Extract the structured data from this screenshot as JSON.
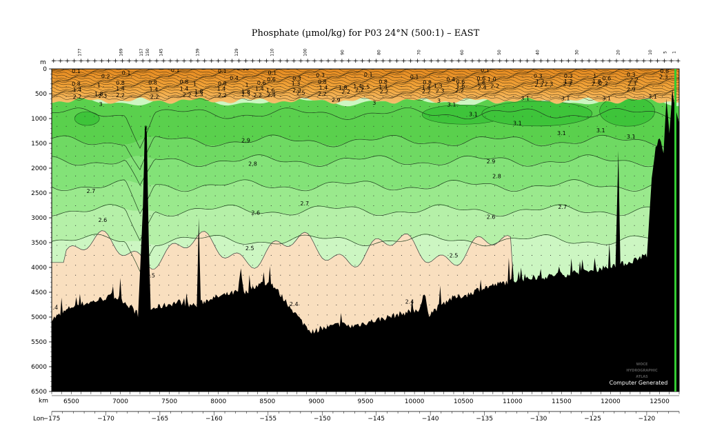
{
  "chart_data": {
    "type": "heatmap",
    "title": "Phosphate (µmol/kg) for P03 24°N (500:1) – EAST",
    "x_unit": "km",
    "y_unit": "m",
    "lon_label": "Lon",
    "xlim": [
      6300,
      12700
    ],
    "ylim": [
      6500,
      0
    ],
    "lon_range": [
      -175,
      -117
    ],
    "x_ticks": [
      6500,
      7000,
      7500,
      8000,
      8500,
      9000,
      9500,
      10000,
      10500,
      11000,
      11500,
      12000,
      12500
    ],
    "y_ticks": [
      0,
      500,
      1000,
      1500,
      2000,
      2500,
      3000,
      3500,
      4000,
      4500,
      5000,
      5500,
      6000,
      6500
    ],
    "lon_ticks": [
      -175,
      -170,
      -165,
      -160,
      -155,
      -150,
      -145,
      -140,
      -135,
      -130,
      -125,
      -120
    ],
    "station_numbers": [
      {
        "km": 6600,
        "label": "177"
      },
      {
        "km": 7020,
        "label": "169"
      },
      {
        "km": 7230,
        "label": "157"
      },
      {
        "km": 7290,
        "label": "150"
      },
      {
        "km": 7430,
        "label": "145"
      },
      {
        "km": 7800,
        "label": "139"
      },
      {
        "km": 8200,
        "label": "129"
      },
      {
        "km": 8560,
        "label": "110"
      },
      {
        "km": 8900,
        "label": "100"
      },
      {
        "km": 9280,
        "label": "90"
      },
      {
        "km": 9650,
        "label": "80"
      },
      {
        "km": 10060,
        "label": "70"
      },
      {
        "km": 10500,
        "label": "60"
      },
      {
        "km": 10880,
        "label": "50"
      },
      {
        "km": 11270,
        "label": "40"
      },
      {
        "km": 11670,
        "label": "30"
      },
      {
        "km": 12090,
        "label": "20"
      },
      {
        "km": 12420,
        "label": "10"
      },
      {
        "km": 12570,
        "label": "5"
      },
      {
        "km": 12660,
        "label": "1"
      }
    ],
    "color_bands": [
      {
        "range": "< 2.5",
        "color": "#f9dfbf"
      },
      {
        "range": "2.5 – 2.6",
        "color": "#ccf6c2"
      },
      {
        "range": "2.6 – 2.7",
        "color": "#b5f0a8"
      },
      {
        "range": "2.7 – 2.8",
        "color": "#9ae98d"
      },
      {
        "range": "2.8 – 2.9",
        "color": "#83e278"
      },
      {
        "range": "2.9 – 3.0",
        "color": "#6fd963"
      },
      {
        "range": "3.0 – 3.1",
        "color": "#5ad04d"
      },
      {
        "range": "> 3.1",
        "color": "#3ec43a"
      },
      {
        "range": "near surface",
        "color": "#f2a53b"
      }
    ],
    "contour_labels": [
      {
        "km": 6550,
        "depth": 80,
        "text": "0.1"
      },
      {
        "km": 6850,
        "depth": 190,
        "text": "0.2"
      },
      {
        "km": 7060,
        "depth": 120,
        "text": "0.1"
      },
      {
        "km": 6550,
        "depth": 340,
        "text": "0.8"
      },
      {
        "km": 6780,
        "depth": 370,
        "text": "1"
      },
      {
        "km": 7000,
        "depth": 320,
        "text": "0.8"
      },
      {
        "km": 6560,
        "depth": 460,
        "text": "1.4"
      },
      {
        "km": 7000,
        "depth": 440,
        "text": "1.4"
      },
      {
        "km": 6780,
        "depth": 540,
        "text": "1.8"
      },
      {
        "km": 6560,
        "depth": 600,
        "text": "2.2"
      },
      {
        "km": 6820,
        "depth": 580,
        "text": "2.3"
      },
      {
        "km": 7000,
        "depth": 570,
        "text": "2.2"
      },
      {
        "km": 7330,
        "depth": 310,
        "text": "0.8"
      },
      {
        "km": 7340,
        "depth": 450,
        "text": "1.4"
      },
      {
        "km": 7350,
        "depth": 600,
        "text": "2.2"
      },
      {
        "km": 7560,
        "depth": 60,
        "text": "0.1"
      },
      {
        "km": 7650,
        "depth": 300,
        "text": "0.8"
      },
      {
        "km": 7760,
        "depth": 340,
        "text": "1"
      },
      {
        "km": 7650,
        "depth": 440,
        "text": "1.4"
      },
      {
        "km": 7800,
        "depth": 490,
        "text": "1.8"
      },
      {
        "km": 7680,
        "depth": 560,
        "text": "2.2"
      },
      {
        "km": 7800,
        "depth": 550,
        "text": "2.3"
      },
      {
        "km": 8040,
        "depth": 80,
        "text": "0.1"
      },
      {
        "km": 8250,
        "depth": 30,
        "text": "0.06"
      },
      {
        "km": 8160,
        "depth": 220,
        "text": "0.4"
      },
      {
        "km": 8040,
        "depth": 330,
        "text": "0.8"
      },
      {
        "km": 8030,
        "depth": 440,
        "text": "1.4"
      },
      {
        "km": 8040,
        "depth": 570,
        "text": "2.2"
      },
      {
        "km": 8290,
        "depth": 360,
        "text": "1"
      },
      {
        "km": 8280,
        "depth": 500,
        "text": "1.8"
      },
      {
        "km": 8280,
        "depth": 550,
        "text": "2.3"
      },
      {
        "km": 8440,
        "depth": 320,
        "text": "0.6"
      },
      {
        "km": 8420,
        "depth": 440,
        "text": "1.4"
      },
      {
        "km": 8400,
        "depth": 570,
        "text": "2.2"
      },
      {
        "km": 8540,
        "depth": 250,
        "text": "0.6"
      },
      {
        "km": 8530,
        "depth": 470,
        "text": "1.6"
      },
      {
        "km": 8540,
        "depth": 560,
        "text": "2.4"
      },
      {
        "km": 8550,
        "depth": 120,
        "text": "0.1"
      },
      {
        "km": 8800,
        "depth": 230,
        "text": "0.3"
      },
      {
        "km": 8790,
        "depth": 330,
        "text": "1.3"
      },
      {
        "km": 8800,
        "depth": 470,
        "text": "2.3"
      },
      {
        "km": 8840,
        "depth": 520,
        "text": "2.5"
      },
      {
        "km": 9040,
        "depth": 170,
        "text": "0.3"
      },
      {
        "km": 9060,
        "depth": 300,
        "text": "0.8"
      },
      {
        "km": 9070,
        "depth": 420,
        "text": "1.4"
      },
      {
        "km": 9060,
        "depth": 540,
        "text": "2.2"
      },
      {
        "km": 9270,
        "depth": 420,
        "text": "1.8"
      },
      {
        "km": 9300,
        "depth": 500,
        "text": "2.2"
      },
      {
        "km": 9420,
        "depth": 390,
        "text": "1.4"
      },
      {
        "km": 9440,
        "depth": 460,
        "text": "2.2"
      },
      {
        "km": 9530,
        "depth": 150,
        "text": "0.1"
      },
      {
        "km": 9500,
        "depth": 400,
        "text": "1.5"
      },
      {
        "km": 9680,
        "depth": 300,
        "text": "0.8"
      },
      {
        "km": 9680,
        "depth": 400,
        "text": "1.4"
      },
      {
        "km": 9690,
        "depth": 490,
        "text": "2.2"
      },
      {
        "km": 9200,
        "depth": 670,
        "text": "2.9"
      },
      {
        "km": 9590,
        "depth": 720,
        "text": "3"
      },
      {
        "km": 10000,
        "depth": 200,
        "text": "0.1"
      },
      {
        "km": 10130,
        "depth": 310,
        "text": "0.8"
      },
      {
        "km": 10120,
        "depth": 410,
        "text": "1.4"
      },
      {
        "km": 10120,
        "depth": 490,
        "text": "2.2"
      },
      {
        "km": 10240,
        "depth": 380,
        "text": "1.3"
      },
      {
        "km": 10260,
        "depth": 480,
        "text": "2.3"
      },
      {
        "km": 10370,
        "depth": 250,
        "text": "0.4"
      },
      {
        "km": 10470,
        "depth": 300,
        "text": "0.6"
      },
      {
        "km": 10470,
        "depth": 380,
        "text": "1.6"
      },
      {
        "km": 10460,
        "depth": 470,
        "text": "2.2"
      },
      {
        "km": 10250,
        "depth": 680,
        "text": "3"
      },
      {
        "km": 10380,
        "depth": 760,
        "text": "3.1"
      },
      {
        "km": 10720,
        "depth": 60,
        "text": "0.1"
      },
      {
        "km": 10680,
        "depth": 230,
        "text": "0.6"
      },
      {
        "km": 10680,
        "depth": 320,
        "text": "1.6"
      },
      {
        "km": 10690,
        "depth": 410,
        "text": "2.4"
      },
      {
        "km": 10790,
        "depth": 250,
        "text": "1.0"
      },
      {
        "km": 10820,
        "depth": 380,
        "text": "2.2"
      },
      {
        "km": 10600,
        "depth": 950,
        "text": "3.1"
      },
      {
        "km": 11130,
        "depth": 630,
        "text": "3.1"
      },
      {
        "km": 11050,
        "depth": 1130,
        "text": "3.1"
      },
      {
        "km": 11260,
        "depth": 180,
        "text": "0.3"
      },
      {
        "km": 11280,
        "depth": 290,
        "text": "1.3"
      },
      {
        "km": 11270,
        "depth": 360,
        "text": "2.2"
      },
      {
        "km": 11370,
        "depth": 340,
        "text": "2.3"
      },
      {
        "km": 11540,
        "depth": 630,
        "text": "3.1"
      },
      {
        "km": 11570,
        "depth": 180,
        "text": "0.3"
      },
      {
        "km": 11570,
        "depth": 290,
        "text": "1.3"
      },
      {
        "km": 11560,
        "depth": 340,
        "text": "2.3"
      },
      {
        "km": 11840,
        "depth": 180,
        "text": "1"
      },
      {
        "km": 11860,
        "depth": 290,
        "text": "1.8"
      },
      {
        "km": 11850,
        "depth": 340,
        "text": "2.3"
      },
      {
        "km": 11960,
        "depth": 230,
        "text": "0.6"
      },
      {
        "km": 11930,
        "depth": 330,
        "text": "2.2"
      },
      {
        "km": 11960,
        "depth": 630,
        "text": "3.1"
      },
      {
        "km": 12210,
        "depth": 150,
        "text": "0.3"
      },
      {
        "km": 12240,
        "depth": 260,
        "text": "2.2"
      },
      {
        "km": 12220,
        "depth": 330,
        "text": "2.3"
      },
      {
        "km": 12210,
        "depth": 450,
        "text": "2.9"
      },
      {
        "km": 12430,
        "depth": 600,
        "text": "3.1"
      },
      {
        "km": 12550,
        "depth": 80,
        "text": "0.8"
      },
      {
        "km": 12540,
        "depth": 200,
        "text": "2.3"
      },
      {
        "km": 11500,
        "depth": 1330,
        "text": "3.1"
      },
      {
        "km": 11900,
        "depth": 1280,
        "text": "3.1"
      },
      {
        "km": 12210,
        "depth": 1400,
        "text": "3.1"
      },
      {
        "km": 6800,
        "depth": 750,
        "text": "3"
      },
      {
        "km": 7260,
        "depth": 1230,
        "text": "3"
      },
      {
        "km": 8280,
        "depth": 1480,
        "text": "2.9"
      },
      {
        "km": 10780,
        "depth": 1900,
        "text": "2.9"
      },
      {
        "km": 8350,
        "depth": 1950,
        "text": "2.8"
      },
      {
        "km": 10840,
        "depth": 2200,
        "text": "2.8"
      },
      {
        "km": 6700,
        "depth": 2500,
        "text": "2.7"
      },
      {
        "km": 8880,
        "depth": 2750,
        "text": "2.7"
      },
      {
        "km": 11510,
        "depth": 2820,
        "text": "2.7"
      },
      {
        "km": 6820,
        "depth": 3080,
        "text": "2.6"
      },
      {
        "km": 8380,
        "depth": 2940,
        "text": "2.6"
      },
      {
        "km": 10780,
        "depth": 3020,
        "text": "2.6"
      },
      {
        "km": 8320,
        "depth": 3650,
        "text": "2.5"
      },
      {
        "km": 10400,
        "depth": 3800,
        "text": "2.5"
      },
      {
        "km": 7310,
        "depth": 4200,
        "text": "2.5"
      },
      {
        "km": 6320,
        "depth": 4850,
        "text": "2.4"
      },
      {
        "km": 8770,
        "depth": 4780,
        "text": "2.4"
      },
      {
        "km": 9950,
        "depth": 4730,
        "text": "2.4"
      }
    ]
  },
  "stamp": {
    "line1": "WOCE",
    "line2": "HYDROGRAPHIC",
    "line3": "ATLAS",
    "computer_generated": "Computer Generated"
  }
}
